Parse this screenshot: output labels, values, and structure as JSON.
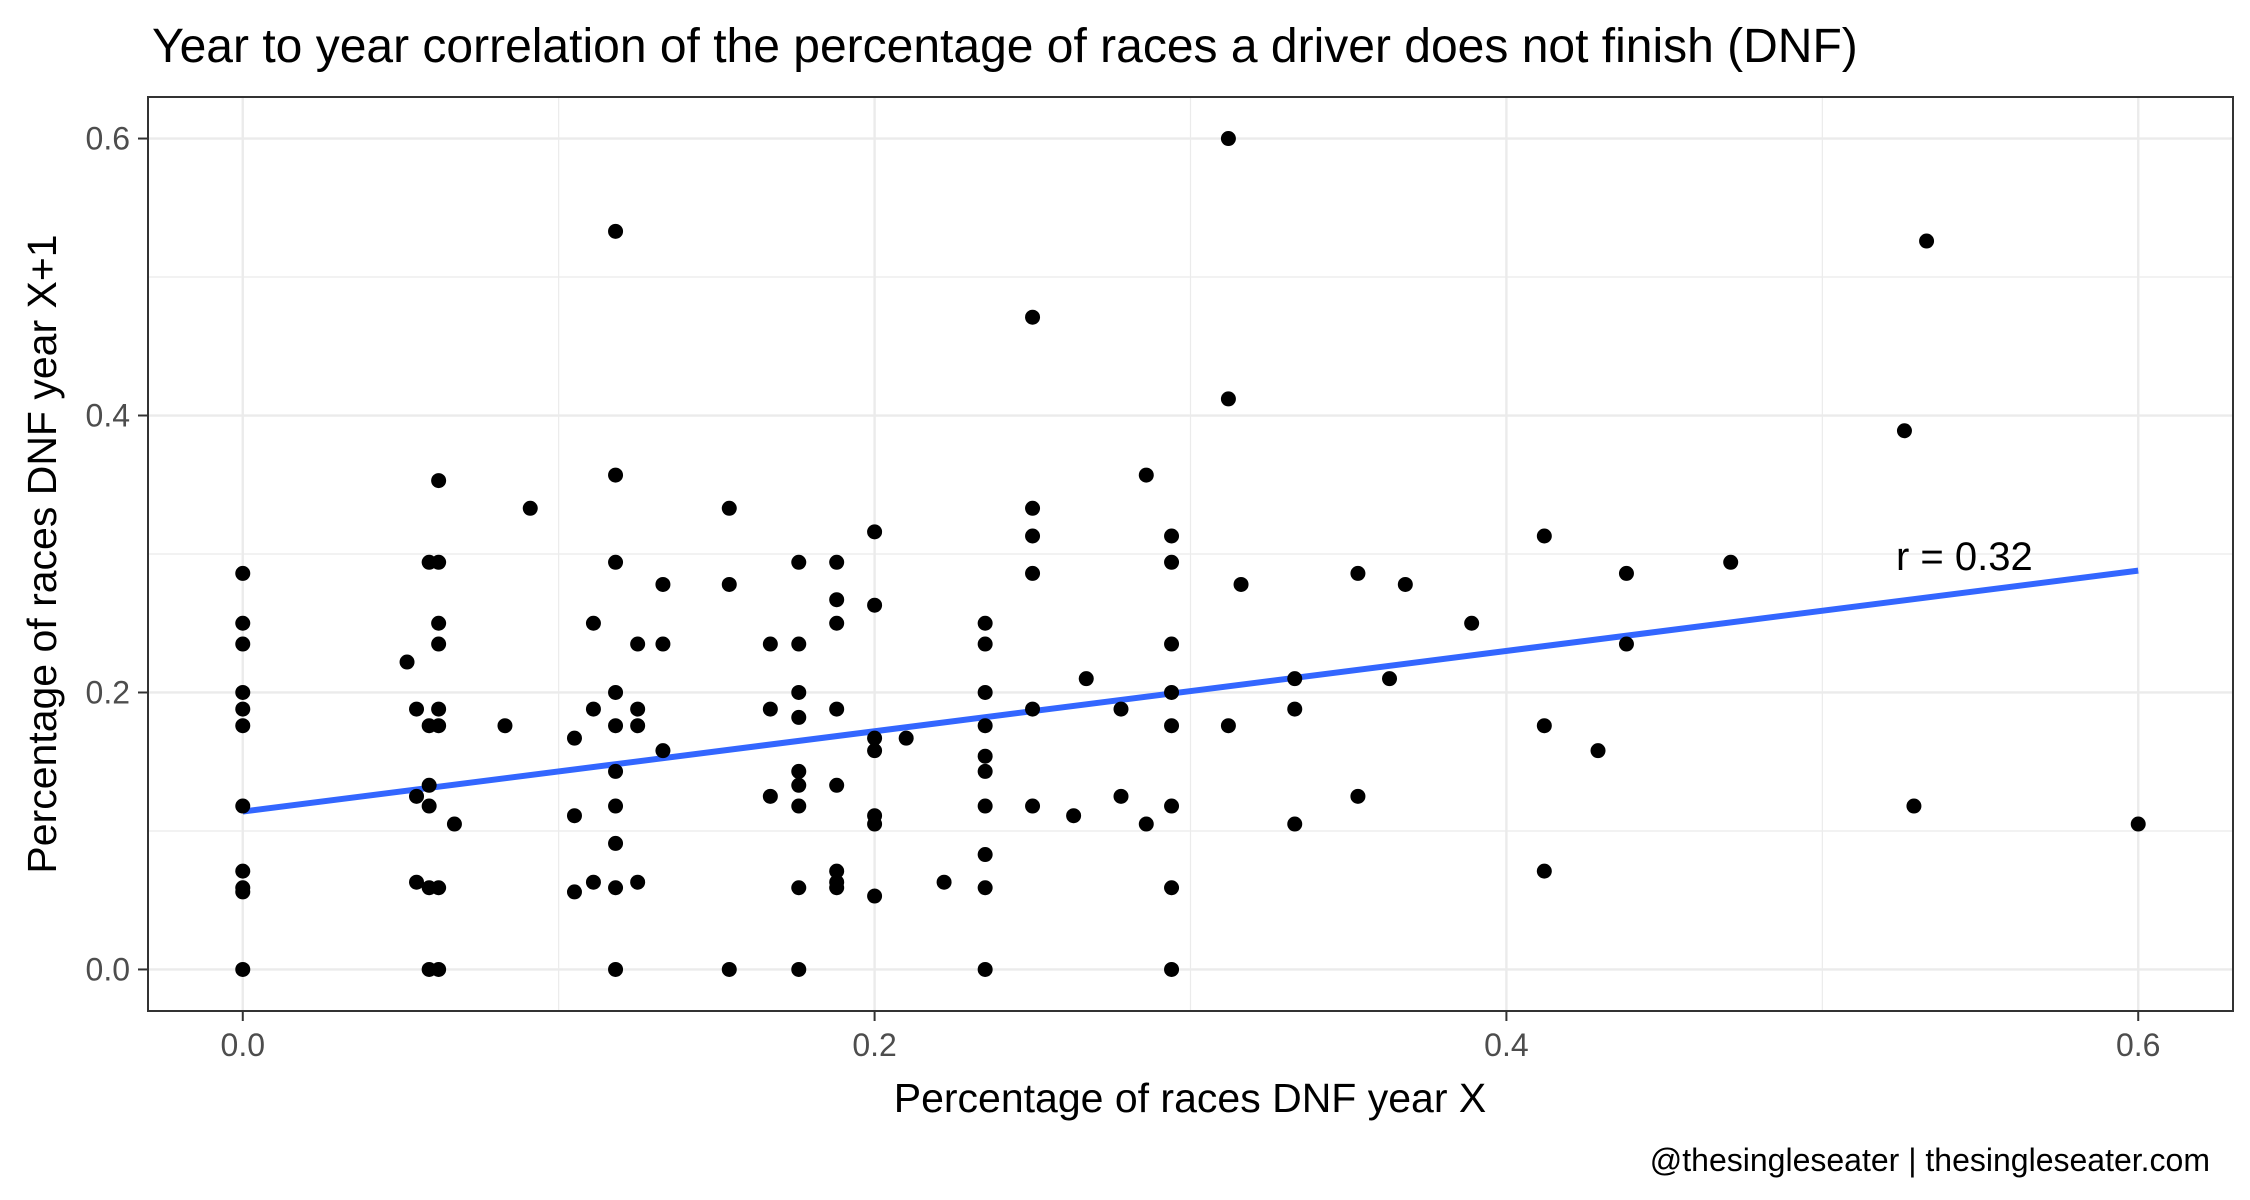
{
  "chart_data": {
    "type": "scatter",
    "title": "Year to year correlation of the percentage of races a driver does not finish (DNF)",
    "xlabel": "Percentage of races DNF year X",
    "ylabel": "Percentage of races DNF year X+1",
    "caption": "@thesingleseater | thesingleseater.com",
    "annotation": "r = 0.32",
    "xlim": [
      -0.03,
      0.63
    ],
    "ylim": [
      -0.03,
      0.63
    ],
    "x_ticks": [
      0.0,
      0.2,
      0.4,
      0.6
    ],
    "x_tick_labels": [
      "0.0",
      "0.2",
      "0.4",
      "0.6"
    ],
    "y_ticks": [
      0.0,
      0.2,
      0.4,
      0.6
    ],
    "y_tick_labels": [
      "0.0",
      "0.2",
      "0.4",
      "0.6"
    ],
    "grid": true,
    "legend": "none",
    "colors": {
      "points": "#000000",
      "fit_line": "#3366ff",
      "grid": "#ebebeb",
      "panel_border": "#333333"
    },
    "fit_line": {
      "x": [
        0.0,
        0.6
      ],
      "y": [
        0.114,
        0.288
      ]
    },
    "points": [
      [
        0.0,
        0.286
      ],
      [
        0.0,
        0.25
      ],
      [
        0.0,
        0.235
      ],
      [
        0.0,
        0.2
      ],
      [
        0.0,
        0.188
      ],
      [
        0.0,
        0.176
      ],
      [
        0.0,
        0.118
      ],
      [
        0.0,
        0.071
      ],
      [
        0.0,
        0.059
      ],
      [
        0.0,
        0.056
      ],
      [
        0.0,
        0.0
      ],
      [
        0.052,
        0.222
      ],
      [
        0.055,
        0.188
      ],
      [
        0.055,
        0.125
      ],
      [
        0.055,
        0.063
      ],
      [
        0.059,
        0.294
      ],
      [
        0.059,
        0.176
      ],
      [
        0.059,
        0.133
      ],
      [
        0.059,
        0.118
      ],
      [
        0.059,
        0.059
      ],
      [
        0.059,
        0.0
      ],
      [
        0.062,
        0.353
      ],
      [
        0.062,
        0.294
      ],
      [
        0.062,
        0.25
      ],
      [
        0.062,
        0.235
      ],
      [
        0.062,
        0.188
      ],
      [
        0.062,
        0.176
      ],
      [
        0.062,
        0.059
      ],
      [
        0.062,
        0.0
      ],
      [
        0.067,
        0.105
      ],
      [
        0.083,
        0.176
      ],
      [
        0.091,
        0.333
      ],
      [
        0.105,
        0.167
      ],
      [
        0.105,
        0.111
      ],
      [
        0.105,
        0.056
      ],
      [
        0.111,
        0.25
      ],
      [
        0.111,
        0.188
      ],
      [
        0.111,
        0.063
      ],
      [
        0.118,
        0.533
      ],
      [
        0.118,
        0.357
      ],
      [
        0.118,
        0.294
      ],
      [
        0.118,
        0.2
      ],
      [
        0.118,
        0.176
      ],
      [
        0.118,
        0.143
      ],
      [
        0.118,
        0.118
      ],
      [
        0.118,
        0.091
      ],
      [
        0.118,
        0.059
      ],
      [
        0.118,
        0.0
      ],
      [
        0.125,
        0.235
      ],
      [
        0.125,
        0.188
      ],
      [
        0.125,
        0.176
      ],
      [
        0.125,
        0.063
      ],
      [
        0.133,
        0.278
      ],
      [
        0.133,
        0.235
      ],
      [
        0.133,
        0.158
      ],
      [
        0.154,
        0.333
      ],
      [
        0.154,
        0.278
      ],
      [
        0.154,
        0.0
      ],
      [
        0.167,
        0.235
      ],
      [
        0.167,
        0.188
      ],
      [
        0.167,
        0.125
      ],
      [
        0.176,
        0.294
      ],
      [
        0.176,
        0.235
      ],
      [
        0.176,
        0.2
      ],
      [
        0.176,
        0.182
      ],
      [
        0.176,
        0.143
      ],
      [
        0.176,
        0.133
      ],
      [
        0.176,
        0.118
      ],
      [
        0.176,
        0.059
      ],
      [
        0.176,
        0.0
      ],
      [
        0.188,
        0.294
      ],
      [
        0.188,
        0.267
      ],
      [
        0.188,
        0.25
      ],
      [
        0.188,
        0.188
      ],
      [
        0.188,
        0.133
      ],
      [
        0.188,
        0.071
      ],
      [
        0.188,
        0.063
      ],
      [
        0.188,
        0.059
      ],
      [
        0.2,
        0.316
      ],
      [
        0.2,
        0.263
      ],
      [
        0.2,
        0.167
      ],
      [
        0.2,
        0.158
      ],
      [
        0.2,
        0.111
      ],
      [
        0.2,
        0.105
      ],
      [
        0.2,
        0.053
      ],
      [
        0.21,
        0.167
      ],
      [
        0.222,
        0.063
      ],
      [
        0.235,
        0.25
      ],
      [
        0.235,
        0.235
      ],
      [
        0.235,
        0.2
      ],
      [
        0.235,
        0.176
      ],
      [
        0.235,
        0.154
      ],
      [
        0.235,
        0.143
      ],
      [
        0.235,
        0.118
      ],
      [
        0.235,
        0.083
      ],
      [
        0.235,
        0.059
      ],
      [
        0.235,
        0.0
      ],
      [
        0.25,
        0.471
      ],
      [
        0.25,
        0.333
      ],
      [
        0.25,
        0.313
      ],
      [
        0.25,
        0.286
      ],
      [
        0.25,
        0.188
      ],
      [
        0.25,
        0.118
      ],
      [
        0.263,
        0.111
      ],
      [
        0.267,
        0.21
      ],
      [
        0.278,
        0.188
      ],
      [
        0.278,
        0.125
      ],
      [
        0.286,
        0.357
      ],
      [
        0.286,
        0.105
      ],
      [
        0.294,
        0.313
      ],
      [
        0.294,
        0.294
      ],
      [
        0.294,
        0.235
      ],
      [
        0.294,
        0.2
      ],
      [
        0.294,
        0.176
      ],
      [
        0.294,
        0.118
      ],
      [
        0.294,
        0.059
      ],
      [
        0.294,
        0.0
      ],
      [
        0.312,
        0.6
      ],
      [
        0.312,
        0.412
      ],
      [
        0.312,
        0.176
      ],
      [
        0.316,
        0.278
      ],
      [
        0.333,
        0.21
      ],
      [
        0.333,
        0.188
      ],
      [
        0.333,
        0.105
      ],
      [
        0.353,
        0.286
      ],
      [
        0.353,
        0.125
      ],
      [
        0.363,
        0.21
      ],
      [
        0.368,
        0.278
      ],
      [
        0.389,
        0.25
      ],
      [
        0.412,
        0.313
      ],
      [
        0.412,
        0.176
      ],
      [
        0.412,
        0.071
      ],
      [
        0.429,
        0.158
      ],
      [
        0.438,
        0.286
      ],
      [
        0.438,
        0.235
      ],
      [
        0.471,
        0.294
      ],
      [
        0.526,
        0.389
      ],
      [
        0.529,
        0.118
      ],
      [
        0.533,
        0.526
      ],
      [
        0.6,
        0.105
      ]
    ]
  }
}
